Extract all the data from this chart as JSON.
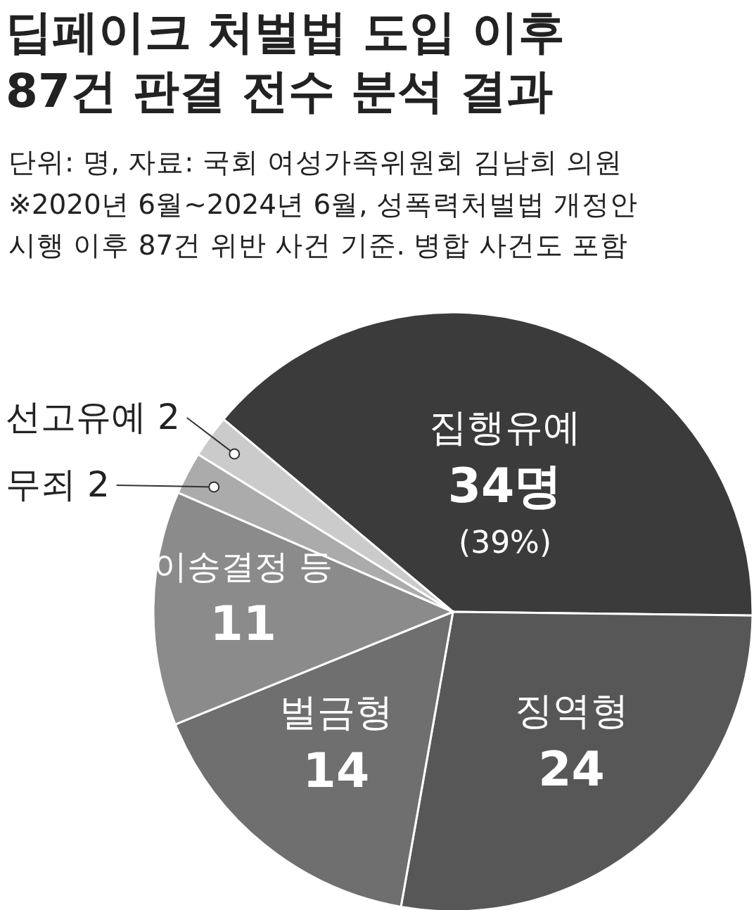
{
  "chart_data": {
    "type": "pie",
    "title": "딥페이크 처벌법 도입 이후\n87건 판결 전수 분석 결과",
    "subtitle": "단위: 명, 자료: 국회 여성가족위원회 김남희 의원",
    "annotations": [
      "※2020년 6월~2024년 6월, 성폭력처벌법 개정안",
      "시행 이후 87건 위반 사건 기준. 병합 사건도 포함"
    ],
    "categories": [
      "집행유예",
      "징역형",
      "벌금형",
      "이송결정 등",
      "무죄",
      "선고유예"
    ],
    "values": [
      34,
      24,
      14,
      11,
      2,
      2
    ],
    "value_labels": [
      "34명\n(39%)",
      "24",
      "14",
      "11",
      "2",
      "2"
    ],
    "colors": [
      "#3b3b3b",
      "#575757",
      "#6f6f6f",
      "#8b8b8b",
      "#ababab",
      "#cbcbcb"
    ]
  }
}
